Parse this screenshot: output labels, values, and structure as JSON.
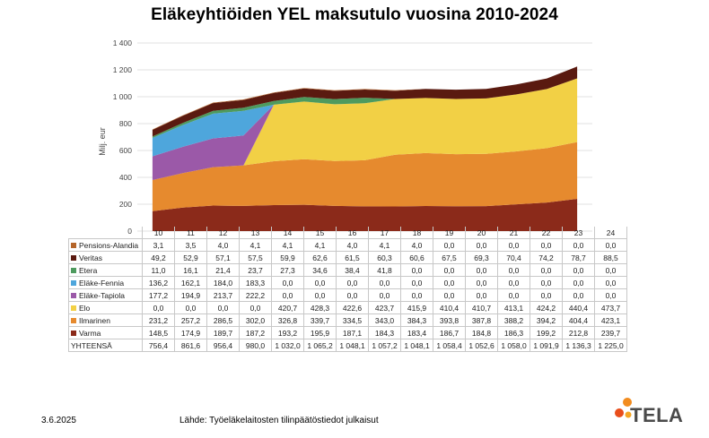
{
  "title": "Eläkeyhtiöiden YEL maksutulo vuosina 2010-2024",
  "footer": {
    "date": "3.6.2025",
    "source": "Lähde: Työeläkelaitosten tilinpäätöstiedot julkaisut"
  },
  "logo": {
    "text": "TELA",
    "dot_colors": [
      "#f28c1f",
      "#e94e1b",
      "#f5a623"
    ]
  },
  "chart_data": {
    "type": "area",
    "title": "Eläkeyhtiöiden YEL maksutulo vuosina 2010-2024",
    "ylabel": "Milj. eur",
    "xlabel": "",
    "ylim": [
      0,
      1400
    ],
    "yticks": [
      "0",
      "200",
      "400",
      "600",
      "800",
      "1 000",
      "1 200",
      "1 400"
    ],
    "categories": [
      "10",
      "11",
      "12",
      "13",
      "14",
      "15",
      "16",
      "17",
      "18",
      "19",
      "20",
      "21",
      "22",
      "23",
      "24"
    ],
    "stacked": true,
    "grid": true,
    "series": [
      {
        "name": "Varma",
        "color": "#8b2a1a",
        "values": [
          148.5,
          174.9,
          189.7,
          187.2,
          193.2,
          195.9,
          187.1,
          184.3,
          183.4,
          186.7,
          184.8,
          186.3,
          199.2,
          212.8,
          239.7
        ],
        "labels": [
          "148,5",
          "174,9",
          "189,7",
          "187,2",
          "193,2",
          "195,9",
          "187,1",
          "184,3",
          "183,4",
          "186,7",
          "184,8",
          "186,3",
          "199,2",
          "212,8",
          "239,7"
        ]
      },
      {
        "name": "Ilmarinen",
        "color": "#e68a2e",
        "values": [
          231.2,
          257.2,
          286.5,
          302.0,
          326.8,
          339.7,
          334.5,
          343.0,
          384.3,
          393.8,
          387.8,
          388.2,
          394.2,
          404.4,
          423.1
        ],
        "labels": [
          "231,2",
          "257,2",
          "286,5",
          "302,0",
          "326,8",
          "339,7",
          "334,5",
          "343,0",
          "384,3",
          "393,8",
          "387,8",
          "388,2",
          "394,2",
          "404,4",
          "423,1"
        ]
      },
      {
        "name": "Elo",
        "color": "#f2d045",
        "values": [
          0.0,
          0.0,
          0.0,
          0.0,
          420.7,
          428.3,
          422.6,
          423.7,
          415.9,
          410.4,
          410.7,
          413.1,
          424.2,
          440.4,
          473.7
        ],
        "labels": [
          "0,0",
          "0,0",
          "0,0",
          "0,0",
          "420,7",
          "428,3",
          "422,6",
          "423,7",
          "415,9",
          "410,4",
          "410,7",
          "413,1",
          "424,2",
          "440,4",
          "473,7"
        ]
      },
      {
        "name": "Eläke-Tapiola",
        "color": "#9b59a8",
        "values": [
          177.2,
          194.9,
          213.7,
          222.2,
          0.0,
          0.0,
          0.0,
          0.0,
          0.0,
          0.0,
          0.0,
          0.0,
          0.0,
          0.0,
          0.0
        ],
        "labels": [
          "177,2",
          "194,9",
          "213,7",
          "222,2",
          "0,0",
          "0,0",
          "0,0",
          "0,0",
          "0,0",
          "0,0",
          "0,0",
          "0,0",
          "0,0",
          "0,0",
          "0,0"
        ]
      },
      {
        "name": "Eläke-Fennia",
        "color": "#4ea6dc",
        "values": [
          136.2,
          162.1,
          184.0,
          183.3,
          0.0,
          0.0,
          0.0,
          0.0,
          0.0,
          0.0,
          0.0,
          0.0,
          0.0,
          0.0,
          0.0
        ],
        "labels": [
          "136,2",
          "162,1",
          "184,0",
          "183,3",
          "0,0",
          "0,0",
          "0,0",
          "0,0",
          "0,0",
          "0,0",
          "0,0",
          "0,0",
          "0,0",
          "0,0",
          "0,0"
        ]
      },
      {
        "name": "Etera",
        "color": "#4e9a5e",
        "values": [
          11.0,
          16.1,
          21.4,
          23.7,
          27.3,
          34.6,
          38.4,
          41.8,
          0.0,
          0.0,
          0.0,
          0.0,
          0.0,
          0.0,
          0.0
        ],
        "labels": [
          "11,0",
          "16,1",
          "21,4",
          "23,7",
          "27,3",
          "34,6",
          "38,4",
          "41,8",
          "0,0",
          "0,0",
          "0,0",
          "0,0",
          "0,0",
          "0,0",
          "0,0"
        ]
      },
      {
        "name": "Veritas",
        "color": "#5a1a10",
        "values": [
          49.2,
          52.9,
          57.1,
          57.5,
          59.9,
          62.6,
          61.5,
          60.3,
          60.6,
          67.5,
          69.3,
          70.4,
          74.2,
          78.7,
          88.5
        ],
        "labels": [
          "49,2",
          "52,9",
          "57,1",
          "57,5",
          "59,9",
          "62,6",
          "61,5",
          "60,3",
          "60,6",
          "67,5",
          "69,3",
          "70,4",
          "74,2",
          "78,7",
          "88,5"
        ]
      },
      {
        "name": "Pensions-Alandia",
        "color": "#b5652a",
        "values": [
          3.1,
          3.5,
          4.0,
          4.1,
          4.1,
          4.1,
          4.0,
          4.1,
          4.0,
          0.0,
          0.0,
          0.0,
          0.0,
          0.0,
          0.0
        ],
        "labels": [
          "3,1",
          "3,5",
          "4,0",
          "4,1",
          "4,1",
          "4,1",
          "4,0",
          "4,1",
          "4,0",
          "0,0",
          "0,0",
          "0,0",
          "0,0",
          "0,0",
          "0,0"
        ]
      }
    ],
    "total": {
      "name": "YHTEENSÄ",
      "values": [
        756.4,
        861.6,
        956.4,
        980.0,
        1032.0,
        1065.2,
        1048.1,
        1057.2,
        1048.1,
        1058.4,
        1052.6,
        1058.0,
        1091.9,
        1136.3,
        1225.0
      ],
      "labels": [
        "756,4",
        "861,6",
        "956,4",
        "980,0",
        "1 032,0",
        "1 065,2",
        "1 048,1",
        "1 057,2",
        "1 048,1",
        "1 058,4",
        "1 052,6",
        "1 058,0",
        "1 091,9",
        "1 136,3",
        "1 225,0"
      ]
    },
    "table_row_order": [
      "Pensions-Alandia",
      "Veritas",
      "Etera",
      "Eläke-Fennia",
      "Eläke-Tapiola",
      "Elo",
      "Ilmarinen",
      "Varma"
    ]
  }
}
